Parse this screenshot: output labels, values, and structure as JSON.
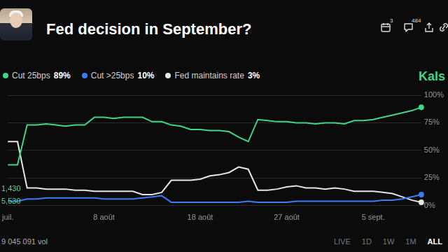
{
  "chart_data": {
    "type": "line",
    "title": "Fed decision in September?",
    "categories": [
      "juil.",
      null,
      null,
      null,
      null,
      null,
      null,
      null,
      null,
      null,
      "8 août",
      null,
      null,
      null,
      null,
      null,
      null,
      null,
      null,
      null,
      "18 août",
      null,
      null,
      null,
      null,
      null,
      null,
      null,
      null,
      "27 août",
      null,
      null,
      null,
      null,
      null,
      null,
      null,
      null,
      "5 sept.",
      null,
      null,
      null,
      null,
      null
    ],
    "series": [
      {
        "name": "Cut 25bps",
        "color": "#3ed68b",
        "last_label": "89%",
        "values": [
          37,
          37,
          73,
          73,
          74,
          73,
          72,
          73,
          73,
          80,
          80,
          79,
          80,
          80,
          80,
          76,
          76,
          73,
          72,
          69,
          69,
          68,
          68,
          67,
          62,
          58,
          78,
          77,
          76,
          76,
          75,
          75,
          74,
          75,
          75,
          74,
          77,
          77,
          78,
          80,
          82,
          84,
          86,
          89
        ]
      },
      {
        "name": "Cut >25bps",
        "color": "#3b7cf5",
        "last_label": "10%",
        "values": [
          4,
          4,
          6,
          6,
          7,
          7,
          7,
          7,
          7,
          7,
          6,
          6,
          6,
          6,
          7,
          8,
          9,
          3,
          3,
          3,
          3,
          3,
          3,
          3,
          3,
          4,
          3,
          3,
          3,
          3,
          4,
          4,
          4,
          4,
          4,
          4,
          4,
          4,
          4,
          5,
          5,
          6,
          8,
          10
        ]
      },
      {
        "name": "Fed maintains rate",
        "color": "#e6e6e6",
        "last_label": "3%",
        "values": [
          58,
          58,
          16,
          16,
          15,
          15,
          15,
          14,
          14,
          13,
          13,
          13,
          13,
          13,
          10,
          10,
          12,
          23,
          23,
          23,
          24,
          27,
          28,
          30,
          35,
          33,
          14,
          14,
          15,
          17,
          18,
          16,
          16,
          15,
          16,
          15,
          13,
          13,
          13,
          12,
          11,
          8,
          5,
          3
        ]
      }
    ],
    "ylim": [
      0,
      100
    ],
    "yticks": [
      {
        "value": 0,
        "label": "0%"
      },
      {
        "value": 25,
        "label": "25%"
      },
      {
        "value": 50,
        "label": "50%"
      },
      {
        "value": 75,
        "label": "75%"
      },
      {
        "value": 100,
        "label": "100%"
      }
    ],
    "grid": true,
    "legend": "top",
    "annotations": [
      "1,430",
      "5,530"
    ]
  },
  "page": {
    "counts": [
      3,
      484
    ],
    "brand": "Kals",
    "volume": "9 045 091 vol",
    "ranges": [
      "LIVE",
      "1D",
      "1W",
      "1M",
      "ALL"
    ],
    "selected_range": "ALL"
  }
}
